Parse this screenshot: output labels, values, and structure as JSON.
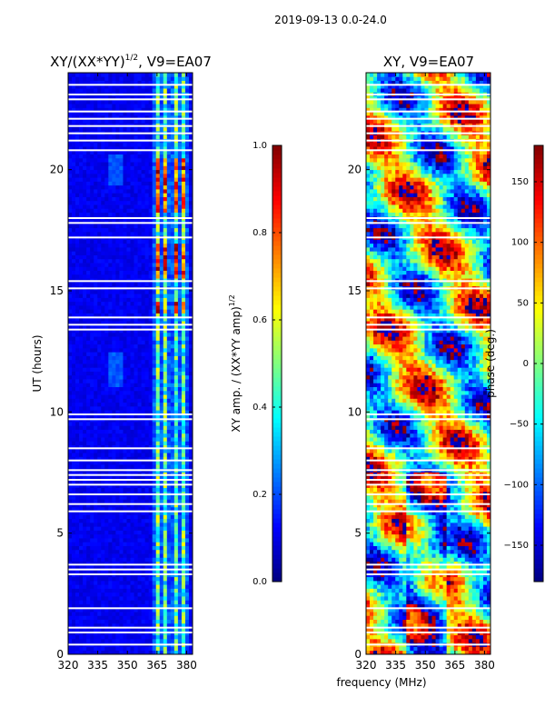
{
  "suptitle": "2019-09-13 0.0-24.0",
  "chart_data": [
    {
      "type": "heatmap",
      "title_text": "XY/(XX*YY)",
      "title_exp": "1/2",
      "title_suffix": ", V9=EA07",
      "xlabel": "",
      "ylabel": "UT (hours)",
      "xlim": [
        320,
        383
      ],
      "ylim": [
        0,
        24
      ],
      "xticks": [
        320,
        335,
        350,
        365,
        380
      ],
      "yticks": [
        0,
        5,
        10,
        15,
        20
      ],
      "colorbar": {
        "label_text": "XY amp. / (XX*YY amp)",
        "label_exp": "1/2",
        "range": [
          0.0,
          1.0
        ],
        "ticks": [
          "0.0",
          "0.2",
          "0.4",
          "0.6",
          "0.8",
          "1.0"
        ]
      },
      "bright_channel_bands_MHz": [
        [
          364,
          366
        ],
        [
          368,
          370.5
        ],
        [
          373,
          375.5
        ],
        [
          378,
          380
        ]
      ],
      "strong_rfi_hours": [
        [
          15.6,
          16.9
        ],
        [
          18.2,
          20.4
        ],
        [
          14.1,
          14.6
        ]
      ],
      "flagged_rows_hours": [
        0.4,
        0.9,
        1.1,
        1.9,
        3.3,
        3.5,
        3.7,
        5.9,
        6.2,
        6.6,
        7.0,
        7.2,
        7.4,
        7.6,
        8.0,
        8.5,
        9.7,
        9.9,
        13.4,
        13.6,
        13.9,
        15.1,
        15.4,
        17.2,
        17.8,
        18.0,
        20.8,
        21.2,
        21.5,
        21.8,
        22.1,
        22.4,
        22.9,
        23.1,
        23.5
      ]
    },
    {
      "type": "heatmap",
      "title": "XY, V9=EA07",
      "xlabel": "frequency (MHz)",
      "ylabel": "",
      "xlim": [
        320,
        383
      ],
      "ylim": [
        0,
        24
      ],
      "xticks": [
        320,
        335,
        350,
        365,
        380
      ],
      "yticks": [
        0,
        5,
        10,
        15,
        20
      ],
      "colorbar": {
        "label": "phase (deg.)",
        "range": [
          -180,
          180
        ],
        "ticks": [
          "−150",
          "−100",
          "−50",
          "0",
          "50",
          "100",
          "150"
        ]
      },
      "flagged_rows_hours": [
        0.4,
        0.9,
        1.1,
        1.9,
        3.3,
        3.5,
        3.7,
        5.9,
        6.2,
        6.6,
        7.0,
        7.2,
        7.4,
        7.6,
        8.0,
        8.5,
        9.7,
        9.9,
        13.4,
        13.6,
        13.9,
        15.1,
        15.4,
        17.2,
        17.8,
        18.0,
        20.8,
        21.2,
        21.5,
        21.8,
        22.1,
        22.4,
        22.9,
        23.1,
        23.5
      ]
    }
  ]
}
